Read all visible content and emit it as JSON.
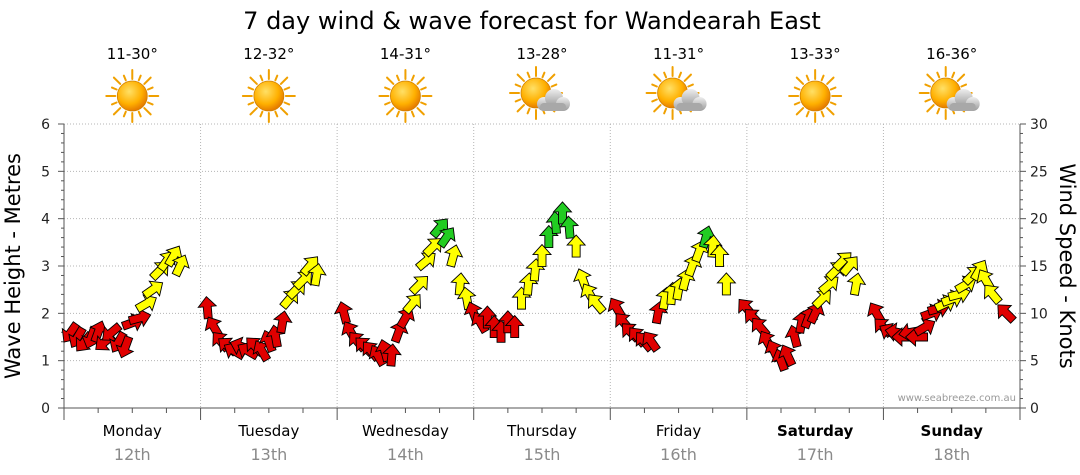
{
  "chart_data": {
    "type": "line",
    "title": "7 day wind & wave forecast for Wandearah East",
    "ylabel_left": "Wave Height - Metres",
    "ylabel_right": "Wind Speed - Knots",
    "left_axis": {
      "min": 0,
      "max": 6,
      "ticks": [
        "0",
        "1",
        "2",
        "3",
        "4",
        "5",
        "6"
      ]
    },
    "right_axis": {
      "min": 0,
      "max": 30,
      "ticks": [
        "0",
        "5",
        "10",
        "15",
        "20",
        "25",
        "30"
      ]
    },
    "credit": "www.seabreeze.com.au",
    "days": [
      {
        "day": "Monday",
        "date": "12th",
        "temp": "11-30°",
        "weather": "sunny",
        "bold": false
      },
      {
        "day": "Tuesday",
        "date": "13th",
        "temp": "12-32°",
        "weather": "sunny",
        "bold": false
      },
      {
        "day": "Wednesday",
        "date": "14th",
        "temp": "14-31°",
        "weather": "sunny",
        "bold": false
      },
      {
        "day": "Thursday",
        "date": "15th",
        "temp": "13-28°",
        "weather": "partly-cloudy",
        "bold": false
      },
      {
        "day": "Friday",
        "date": "16th",
        "temp": "11-31°",
        "weather": "partly-cloudy",
        "bold": false
      },
      {
        "day": "Saturday",
        "date": "17th",
        "temp": "13-33°",
        "weather": "sunny",
        "bold": true
      },
      {
        "day": "Sunday",
        "date": "18th",
        "temp": "16-36°",
        "weather": "partly-cloudy",
        "bold": true
      }
    ],
    "wind_color_scale": [
      {
        "below": 11,
        "color": "#e00000"
      },
      {
        "below": 18,
        "color": "#ffff00"
      },
      {
        "below": 99,
        "color": "#22cc22"
      }
    ],
    "wind_series": [
      {
        "t": 0.05,
        "knots": 8.0,
        "toward_deg": 215
      },
      {
        "t": 0.1,
        "knots": 7.5,
        "toward_deg": 210
      },
      {
        "t": 0.15,
        "knots": 7.0,
        "toward_deg": 220
      },
      {
        "t": 0.2,
        "knots": 7.5,
        "toward_deg": 200
      },
      {
        "t": 0.25,
        "knots": 8.0,
        "toward_deg": 20
      },
      {
        "t": 0.3,
        "knots": 7.0,
        "toward_deg": 230
      },
      {
        "t": 0.35,
        "knots": 8.0,
        "toward_deg": 230
      },
      {
        "t": 0.4,
        "knots": 7.0,
        "toward_deg": 210
      },
      {
        "t": 0.45,
        "knots": 6.5,
        "toward_deg": 200
      },
      {
        "t": 0.5,
        "knots": 9.0,
        "toward_deg": 70
      },
      {
        "t": 0.55,
        "knots": 9.5,
        "toward_deg": 75
      },
      {
        "t": 0.6,
        "knots": 11.0,
        "toward_deg": 60
      },
      {
        "t": 0.65,
        "knots": 12.5,
        "toward_deg": 55
      },
      {
        "t": 0.7,
        "knots": 14.5,
        "toward_deg": 45
      },
      {
        "t": 0.75,
        "knots": 15.5,
        "toward_deg": 35
      },
      {
        "t": 0.8,
        "knots": 16.0,
        "toward_deg": 30
      },
      {
        "t": 0.85,
        "knots": 15.0,
        "toward_deg": 25
      },
      {
        "t": 1.05,
        "knots": 10.5,
        "toward_deg": 355
      },
      {
        "t": 1.1,
        "knots": 8.5,
        "toward_deg": 330
      },
      {
        "t": 1.15,
        "knots": 7.0,
        "toward_deg": 320
      },
      {
        "t": 1.2,
        "knots": 6.5,
        "toward_deg": 310
      },
      {
        "t": 1.25,
        "knots": 6.0,
        "toward_deg": 300
      },
      {
        "t": 1.3,
        "knots": 6.5,
        "toward_deg": 290
      },
      {
        "t": 1.35,
        "knots": 6.0,
        "toward_deg": 300
      },
      {
        "t": 1.4,
        "knots": 6.5,
        "toward_deg": 315
      },
      {
        "t": 1.45,
        "knots": 6.0,
        "toward_deg": 330
      },
      {
        "t": 1.5,
        "knots": 7.0,
        "toward_deg": 340
      },
      {
        "t": 1.55,
        "knots": 7.5,
        "toward_deg": 350
      },
      {
        "t": 1.6,
        "knots": 9.0,
        "toward_deg": 10
      },
      {
        "t": 1.65,
        "knots": 11.5,
        "toward_deg": 40
      },
      {
        "t": 1.7,
        "knots": 12.5,
        "toward_deg": 45
      },
      {
        "t": 1.75,
        "knots": 13.5,
        "toward_deg": 45
      },
      {
        "t": 1.8,
        "knots": 15.0,
        "toward_deg": 40
      },
      {
        "t": 1.85,
        "knots": 14.0,
        "toward_deg": 10
      },
      {
        "t": 2.05,
        "knots": 10.0,
        "toward_deg": 345
      },
      {
        "t": 2.1,
        "knots": 8.0,
        "toward_deg": 330
      },
      {
        "t": 2.15,
        "knots": 7.0,
        "toward_deg": 320
      },
      {
        "t": 2.2,
        "knots": 6.5,
        "toward_deg": 315
      },
      {
        "t": 2.25,
        "knots": 6.0,
        "toward_deg": 320
      },
      {
        "t": 2.3,
        "knots": 5.5,
        "toward_deg": 330
      },
      {
        "t": 2.35,
        "knots": 6.0,
        "toward_deg": 345
      },
      {
        "t": 2.4,
        "knots": 5.5,
        "toward_deg": 5
      },
      {
        "t": 2.45,
        "knots": 8.0,
        "toward_deg": 20
      },
      {
        "t": 2.5,
        "knots": 9.5,
        "toward_deg": 30
      },
      {
        "t": 2.55,
        "knots": 11.0,
        "toward_deg": 40
      },
      {
        "t": 2.6,
        "knots": 13.0,
        "toward_deg": 45
      },
      {
        "t": 2.65,
        "knots": 15.5,
        "toward_deg": 50
      },
      {
        "t": 2.7,
        "knots": 17.0,
        "toward_deg": 45
      },
      {
        "t": 2.75,
        "knots": 19.0,
        "toward_deg": 40
      },
      {
        "t": 2.8,
        "knots": 18.0,
        "toward_deg": 35
      },
      {
        "t": 2.85,
        "knots": 16.0,
        "toward_deg": 15
      },
      {
        "t": 2.9,
        "knots": 13.0,
        "toward_deg": 5
      },
      {
        "t": 2.95,
        "knots": 11.5,
        "toward_deg": 350
      },
      {
        "t": 3.0,
        "knots": 10.0,
        "toward_deg": 340
      },
      {
        "t": 3.05,
        "knots": 9.0,
        "toward_deg": 330
      },
      {
        "t": 3.1,
        "knots": 9.5,
        "toward_deg": 0
      },
      {
        "t": 3.15,
        "knots": 8.5,
        "toward_deg": 0
      },
      {
        "t": 3.2,
        "knots": 8.0,
        "toward_deg": 0
      },
      {
        "t": 3.25,
        "knots": 9.0,
        "toward_deg": 0
      },
      {
        "t": 3.3,
        "knots": 8.5,
        "toward_deg": 0
      },
      {
        "t": 3.35,
        "knots": 11.5,
        "toward_deg": 0
      },
      {
        "t": 3.4,
        "knots": 13.0,
        "toward_deg": 5
      },
      {
        "t": 3.45,
        "knots": 14.5,
        "toward_deg": 5
      },
      {
        "t": 3.5,
        "knots": 16.0,
        "toward_deg": 0
      },
      {
        "t": 3.55,
        "knots": 18.0,
        "toward_deg": 0
      },
      {
        "t": 3.6,
        "knots": 19.5,
        "toward_deg": 355
      },
      {
        "t": 3.65,
        "knots": 20.5,
        "toward_deg": 0
      },
      {
        "t": 3.7,
        "knots": 19.0,
        "toward_deg": 355
      },
      {
        "t": 3.75,
        "knots": 17.0,
        "toward_deg": 0
      },
      {
        "t": 3.8,
        "knots": 13.5,
        "toward_deg": 340
      },
      {
        "t": 3.85,
        "knots": 12.0,
        "toward_deg": 330
      },
      {
        "t": 3.9,
        "knots": 11.0,
        "toward_deg": 320
      },
      {
        "t": 4.05,
        "knots": 10.5,
        "toward_deg": 330
      },
      {
        "t": 4.1,
        "knots": 9.0,
        "toward_deg": 320
      },
      {
        "t": 4.15,
        "knots": 8.0,
        "toward_deg": 315
      },
      {
        "t": 4.2,
        "knots": 7.5,
        "toward_deg": 320
      },
      {
        "t": 4.25,
        "knots": 7.0,
        "toward_deg": 320
      },
      {
        "t": 4.3,
        "knots": 7.0,
        "toward_deg": 325
      },
      {
        "t": 4.35,
        "knots": 10.0,
        "toward_deg": 10
      },
      {
        "t": 4.4,
        "knots": 11.5,
        "toward_deg": 10
      },
      {
        "t": 4.45,
        "knots": 12.0,
        "toward_deg": 5
      },
      {
        "t": 4.5,
        "knots": 12.5,
        "toward_deg": 10
      },
      {
        "t": 4.55,
        "knots": 13.5,
        "toward_deg": 15
      },
      {
        "t": 4.6,
        "knots": 15.0,
        "toward_deg": 20
      },
      {
        "t": 4.65,
        "knots": 16.5,
        "toward_deg": 20
      },
      {
        "t": 4.7,
        "knots": 18.0,
        "toward_deg": 15
      },
      {
        "t": 4.75,
        "knots": 17.0,
        "toward_deg": 5
      },
      {
        "t": 4.8,
        "knots": 16.0,
        "toward_deg": 0
      },
      {
        "t": 4.85,
        "knots": 13.0,
        "toward_deg": 0
      },
      {
        "t": 5.0,
        "knots": 10.5,
        "toward_deg": 320
      },
      {
        "t": 5.05,
        "knots": 9.5,
        "toward_deg": 315
      },
      {
        "t": 5.1,
        "knots": 8.5,
        "toward_deg": 320
      },
      {
        "t": 5.15,
        "knots": 7.0,
        "toward_deg": 330
      },
      {
        "t": 5.2,
        "knots": 6.0,
        "toward_deg": 335
      },
      {
        "t": 5.25,
        "knots": 5.0,
        "toward_deg": 340
      },
      {
        "t": 5.3,
        "knots": 5.5,
        "toward_deg": 335
      },
      {
        "t": 5.35,
        "knots": 7.5,
        "toward_deg": 345
      },
      {
        "t": 5.4,
        "knots": 9.0,
        "toward_deg": 10
      },
      {
        "t": 5.45,
        "knots": 9.5,
        "toward_deg": 20
      },
      {
        "t": 5.5,
        "knots": 10.0,
        "toward_deg": 25
      },
      {
        "t": 5.55,
        "knots": 11.5,
        "toward_deg": 45
      },
      {
        "t": 5.6,
        "knots": 13.0,
        "toward_deg": 50
      },
      {
        "t": 5.65,
        "knots": 14.5,
        "toward_deg": 45
      },
      {
        "t": 5.7,
        "knots": 15.5,
        "toward_deg": 45
      },
      {
        "t": 5.75,
        "knots": 15.0,
        "toward_deg": 40
      },
      {
        "t": 5.8,
        "knots": 13.0,
        "toward_deg": 10
      },
      {
        "t": 5.95,
        "knots": 10.0,
        "toward_deg": 330
      },
      {
        "t": 6.0,
        "knots": 8.5,
        "toward_deg": 315
      },
      {
        "t": 6.05,
        "knots": 8.0,
        "toward_deg": 300
      },
      {
        "t": 6.1,
        "knots": 8.0,
        "toward_deg": 280
      },
      {
        "t": 6.15,
        "knots": 7.5,
        "toward_deg": 270
      },
      {
        "t": 6.2,
        "knots": 8.0,
        "toward_deg": 260
      },
      {
        "t": 6.25,
        "knots": 7.5,
        "toward_deg": 270
      },
      {
        "t": 6.3,
        "knots": 8.5,
        "toward_deg": 60
      },
      {
        "t": 6.35,
        "knots": 10.0,
        "toward_deg": 70
      },
      {
        "t": 6.4,
        "knots": 10.5,
        "toward_deg": 75
      },
      {
        "t": 6.45,
        "knots": 11.0,
        "toward_deg": 65
      },
      {
        "t": 6.5,
        "knots": 11.5,
        "toward_deg": 70
      },
      {
        "t": 6.55,
        "knots": 12.0,
        "toward_deg": 75
      },
      {
        "t": 6.6,
        "knots": 13.0,
        "toward_deg": 60
      },
      {
        "t": 6.65,
        "knots": 14.0,
        "toward_deg": 45
      },
      {
        "t": 6.7,
        "knots": 14.5,
        "toward_deg": 30
      },
      {
        "t": 6.75,
        "knots": 13.5,
        "toward_deg": 330
      },
      {
        "t": 6.8,
        "knots": 12.0,
        "toward_deg": 320
      },
      {
        "t": 6.9,
        "knots": 10.0,
        "toward_deg": 315
      }
    ]
  }
}
